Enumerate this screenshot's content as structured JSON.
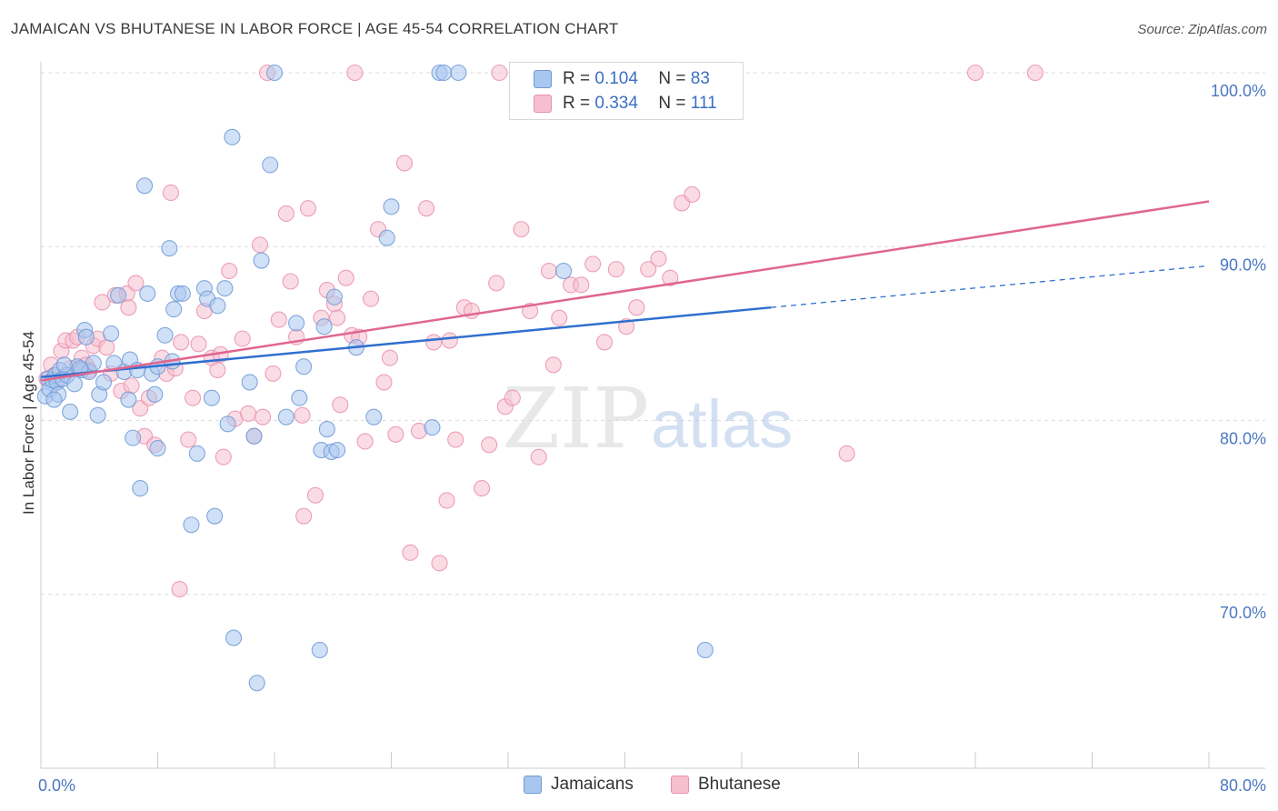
{
  "title": "JAMAICAN VS BHUTANESE IN LABOR FORCE | AGE 45-54 CORRELATION CHART",
  "source": "Source: ZipAtlas.com",
  "watermark": {
    "zip": "ZIP",
    "atlas": "atlas"
  },
  "legend_top": {
    "rows": [
      {
        "r_label": "R =",
        "r_value": "0.104",
        "n_label": "N =",
        "n_value": "83"
      },
      {
        "r_label": "R =",
        "r_value": "0.334",
        "n_label": "N =",
        "n_value": "111"
      }
    ]
  },
  "legend_bottom": {
    "series1": "Jamaicans",
    "series2": "Bhutanese"
  },
  "colors": {
    "jamaicans_fill": "#a9c6ee",
    "jamaicans_stroke": "#6f9ad6",
    "jamaicans_line": "#2f6fcf",
    "bhutanese_fill": "#f6bfd0",
    "bhutanese_stroke": "#ea8fac",
    "bhutanese_line": "#e0668f",
    "tick": "#4a78c2",
    "grid": "#dcdcdc"
  },
  "chart_data": {
    "type": "scatter",
    "title": "JAMAICAN VS BHUTANESE IN LABOR FORCE | AGE 45-54 CORRELATION CHART",
    "xlabel": "",
    "ylabel": "In Labor Force | Age 45-54",
    "xlim": [
      0,
      80
    ],
    "ylim": [
      60,
      100
    ],
    "x_tick_labels": [
      "0.0%",
      "80.0%"
    ],
    "y_tick_labels": [
      "70.0%",
      "80.0%",
      "90.0%",
      "100.0%"
    ],
    "y_ticks": [
      70,
      80,
      90,
      100
    ],
    "grid": true,
    "legend_position": "top-center",
    "series": [
      {
        "name": "Jamaicans",
        "R": 0.104,
        "N": 83,
        "trend": {
          "x0": 0,
          "y0": 82.5,
          "x1": 50,
          "y1": 86.5,
          "dashed_to_x": 80,
          "dashed_to_y": 88.9
        },
        "points": [
          [
            0.3,
            81.4
          ],
          [
            0.5,
            82.4
          ],
          [
            0.6,
            81.8
          ],
          [
            0.8,
            82.3
          ],
          [
            1.0,
            82.6
          ],
          [
            1.1,
            82.2
          ],
          [
            1.2,
            81.5
          ],
          [
            1.3,
            82.9
          ],
          [
            1.5,
            82.4
          ],
          [
            1.8,
            82.6
          ],
          [
            2.0,
            80.5
          ],
          [
            2.3,
            82.1
          ],
          [
            2.5,
            83.1
          ],
          [
            2.8,
            82.9
          ],
          [
            3.0,
            85.2
          ],
          [
            3.1,
            84.8
          ],
          [
            3.3,
            82.8
          ],
          [
            3.6,
            83.3
          ],
          [
            3.9,
            80.3
          ],
          [
            4.0,
            81.5
          ],
          [
            4.3,
            82.2
          ],
          [
            4.8,
            85.0
          ],
          [
            5.0,
            83.3
          ],
          [
            5.3,
            87.2
          ],
          [
            5.7,
            82.8
          ],
          [
            6.0,
            81.2
          ],
          [
            6.1,
            83.5
          ],
          [
            6.3,
            79.0
          ],
          [
            6.6,
            82.9
          ],
          [
            6.8,
            76.1
          ],
          [
            7.1,
            93.5
          ],
          [
            7.3,
            87.3
          ],
          [
            7.6,
            82.7
          ],
          [
            7.8,
            81.5
          ],
          [
            8.0,
            78.4
          ],
          [
            8.5,
            84.9
          ],
          [
            8.8,
            89.9
          ],
          [
            9.1,
            86.4
          ],
          [
            9.4,
            87.3
          ],
          [
            9.7,
            87.3
          ],
          [
            10.3,
            74.0
          ],
          [
            10.7,
            78.1
          ],
          [
            11.2,
            87.6
          ],
          [
            11.4,
            87.0
          ],
          [
            11.7,
            81.3
          ],
          [
            11.9,
            74.5
          ],
          [
            12.1,
            86.6
          ],
          [
            12.6,
            87.6
          ],
          [
            12.8,
            79.8
          ],
          [
            13.1,
            96.3
          ],
          [
            13.2,
            67.5
          ],
          [
            14.3,
            82.2
          ],
          [
            14.6,
            79.1
          ],
          [
            14.8,
            64.9
          ],
          [
            15.1,
            89.2
          ],
          [
            15.7,
            94.7
          ],
          [
            16.0,
            100.0
          ],
          [
            16.8,
            80.2
          ],
          [
            17.5,
            85.6
          ],
          [
            17.7,
            81.3
          ],
          [
            18.0,
            83.1
          ],
          [
            19.1,
            66.8
          ],
          [
            19.2,
            78.3
          ],
          [
            19.4,
            85.4
          ],
          [
            19.6,
            79.5
          ],
          [
            19.9,
            78.2
          ],
          [
            20.1,
            87.1
          ],
          [
            20.3,
            78.3
          ],
          [
            21.6,
            84.2
          ],
          [
            22.8,
            80.2
          ],
          [
            23.7,
            90.5
          ],
          [
            24.0,
            92.3
          ],
          [
            26.8,
            79.6
          ],
          [
            27.3,
            100.0
          ],
          [
            27.6,
            100.0
          ],
          [
            28.6,
            100.0
          ],
          [
            35.8,
            88.6
          ],
          [
            45.5,
            66.8
          ],
          [
            8.0,
            83.1
          ],
          [
            9.0,
            83.4
          ],
          [
            2.7,
            83.0
          ],
          [
            0.9,
            81.2
          ],
          [
            1.6,
            83.2
          ]
        ]
      },
      {
        "name": "Bhutanese",
        "R": 0.334,
        "N": 111,
        "trend": {
          "x0": 0,
          "y0": 82.3,
          "x1": 80,
          "y1": 92.6
        },
        "points": [
          [
            0.4,
            82.4
          ],
          [
            0.7,
            83.2
          ],
          [
            0.9,
            82.6
          ],
          [
            1.1,
            82.3
          ],
          [
            1.4,
            84.0
          ],
          [
            1.7,
            84.6
          ],
          [
            2.0,
            83.0
          ],
          [
            2.2,
            84.6
          ],
          [
            2.5,
            84.8
          ],
          [
            2.8,
            83.6
          ],
          [
            3.1,
            83.2
          ],
          [
            3.3,
            82.9
          ],
          [
            3.6,
            84.3
          ],
          [
            3.9,
            84.7
          ],
          [
            4.2,
            86.8
          ],
          [
            4.5,
            84.2
          ],
          [
            4.8,
            82.7
          ],
          [
            5.1,
            87.2
          ],
          [
            5.5,
            81.7
          ],
          [
            5.9,
            87.3
          ],
          [
            6.2,
            82.0
          ],
          [
            6.5,
            87.9
          ],
          [
            6.8,
            80.7
          ],
          [
            7.1,
            79.1
          ],
          [
            7.4,
            81.3
          ],
          [
            7.8,
            78.6
          ],
          [
            8.3,
            83.6
          ],
          [
            8.6,
            82.7
          ],
          [
            8.9,
            93.1
          ],
          [
            9.2,
            83.0
          ],
          [
            9.6,
            84.5
          ],
          [
            10.1,
            78.9
          ],
          [
            10.4,
            81.3
          ],
          [
            10.8,
            84.4
          ],
          [
            11.2,
            86.3
          ],
          [
            11.7,
            83.6
          ],
          [
            12.1,
            82.9
          ],
          [
            12.5,
            77.9
          ],
          [
            12.9,
            88.6
          ],
          [
            13.3,
            80.1
          ],
          [
            13.8,
            84.7
          ],
          [
            14.2,
            80.4
          ],
          [
            14.6,
            79.1
          ],
          [
            15.0,
            90.1
          ],
          [
            15.5,
            100.0
          ],
          [
            15.9,
            82.7
          ],
          [
            16.3,
            85.8
          ],
          [
            16.8,
            91.9
          ],
          [
            17.1,
            88.0
          ],
          [
            17.5,
            84.8
          ],
          [
            17.9,
            80.3
          ],
          [
            18.3,
            92.2
          ],
          [
            18.8,
            75.7
          ],
          [
            19.2,
            85.9
          ],
          [
            19.6,
            87.5
          ],
          [
            20.1,
            86.7
          ],
          [
            20.5,
            80.9
          ],
          [
            20.9,
            88.2
          ],
          [
            21.3,
            84.9
          ],
          [
            21.8,
            84.8
          ],
          [
            22.2,
            78.8
          ],
          [
            22.6,
            87.0
          ],
          [
            23.1,
            91.0
          ],
          [
            23.5,
            82.2
          ],
          [
            23.9,
            83.6
          ],
          [
            24.3,
            79.2
          ],
          [
            24.9,
            94.8
          ],
          [
            25.3,
            72.4
          ],
          [
            25.9,
            79.4
          ],
          [
            26.4,
            92.2
          ],
          [
            26.9,
            84.5
          ],
          [
            27.3,
            71.8
          ],
          [
            27.8,
            75.4
          ],
          [
            28.4,
            78.9
          ],
          [
            29.0,
            86.5
          ],
          [
            29.5,
            86.3
          ],
          [
            30.2,
            76.1
          ],
          [
            30.7,
            78.6
          ],
          [
            31.2,
            87.9
          ],
          [
            31.8,
            80.8
          ],
          [
            32.3,
            81.3
          ],
          [
            32.9,
            91.0
          ],
          [
            33.5,
            86.3
          ],
          [
            34.1,
            77.9
          ],
          [
            34.8,
            88.6
          ],
          [
            35.5,
            85.9
          ],
          [
            36.3,
            87.8
          ],
          [
            37.0,
            87.8
          ],
          [
            37.8,
            89.0
          ],
          [
            38.6,
            84.5
          ],
          [
            39.4,
            88.7
          ],
          [
            40.1,
            85.4
          ],
          [
            40.8,
            86.5
          ],
          [
            41.6,
            88.7
          ],
          [
            42.3,
            89.3
          ],
          [
            43.1,
            88.2
          ],
          [
            43.9,
            92.5
          ],
          [
            44.6,
            93.0
          ],
          [
            9.5,
            70.3
          ],
          [
            18.0,
            74.5
          ],
          [
            21.5,
            100.0
          ],
          [
            31.4,
            100.0
          ],
          [
            35.1,
            83.2
          ],
          [
            55.2,
            78.1
          ],
          [
            64.0,
            100.0
          ],
          [
            68.1,
            100.0
          ],
          [
            6.0,
            86.5
          ],
          [
            12.3,
            83.8
          ],
          [
            15.2,
            80.2
          ],
          [
            20.3,
            85.9
          ],
          [
            28.0,
            84.6
          ]
        ]
      }
    ]
  }
}
